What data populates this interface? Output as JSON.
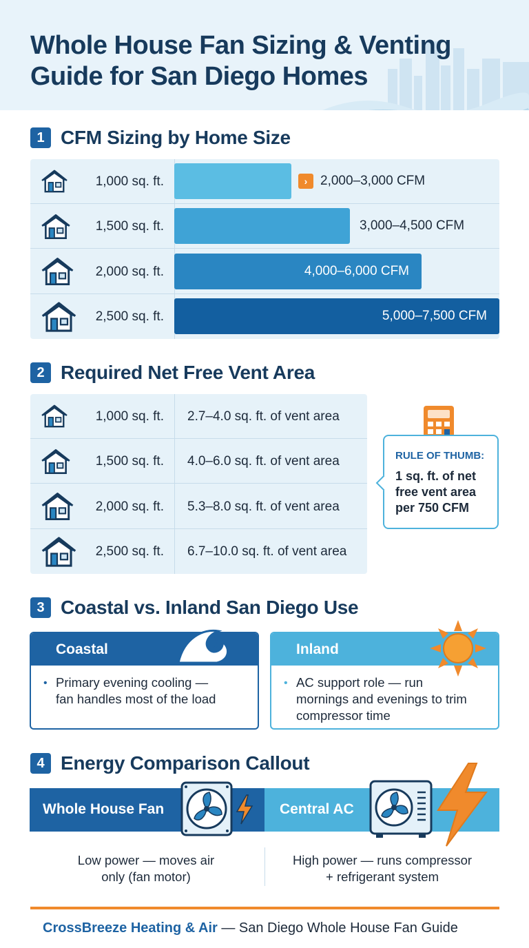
{
  "title": "Whole House Fan Sizing & Venting Guide for San Diego Homes",
  "section1": {
    "num": "1",
    "title": "CFM Sizing by Home Size"
  },
  "cfm_rows": [
    {
      "size": "1,000 sq. ft.",
      "cfm": "2,000–3,000 CFM",
      "level": 0.36,
      "color": "#5bbde3"
    },
    {
      "size": "1,500 sq. ft.",
      "cfm": "3,000–4,500 CFM",
      "level": 0.54,
      "color": "#3fa3d6"
    },
    {
      "size": "2,000 sq. ft.",
      "cfm": "4,000–6,000 CFM",
      "level": 0.76,
      "color": "#2a86c2"
    },
    {
      "size": "2,500 sq. ft.",
      "cfm": "5,000–7,500 CFM",
      "level": 1.0,
      "color": "#135fa0"
    }
  ],
  "section2": {
    "num": "2",
    "title": "Required Net Free Vent Area"
  },
  "vent_rows": [
    {
      "size": "1,000 sq. ft.",
      "area": "2.7–4.0 sq. ft. of vent area"
    },
    {
      "size": "1,500 sq. ft.",
      "area": "4.0–6.0 sq. ft. of vent area"
    },
    {
      "size": "2,000 sq. ft.",
      "area": "5.3–8.0 sq. ft. of vent area"
    },
    {
      "size": "2,500 sq. ft.",
      "area": "6.7–10.0 sq. ft. of vent area"
    }
  ],
  "rule": {
    "title": "RULE OF THUMB:",
    "line1": "1 sq. ft. of net",
    "line2": "free vent area",
    "line3": "per 750 CFM"
  },
  "section3": {
    "num": "3",
    "title": "Coastal vs. Inland San Diego Use"
  },
  "coastal": {
    "title": "Coastal",
    "line1": "Primary evening cooling —",
    "line2": "fan handles most of the load"
  },
  "inland": {
    "title": "Inland",
    "line1": "AC support role — run",
    "line2": "mornings and evenings to trim",
    "line3": "compressor time"
  },
  "section4": {
    "num": "4",
    "title": "Energy Comparison Callout"
  },
  "fan": {
    "label": "Whole House Fan",
    "line1": "Low power — moves air",
    "line2": "only (fan motor)"
  },
  "ac": {
    "label": "Central AC",
    "line1": "High power — runs compressor",
    "line2": "+ refrigerant system"
  },
  "footer": {
    "brand": "CrossBreeze Heating & Air",
    "rest": " — San Diego Whole House Fan Guide"
  },
  "colors": {
    "navy": "#173a5c",
    "blue": "#1e63a3",
    "sky": "#4db2dc",
    "orange": "#f08a2c"
  },
  "icons": {
    "house": "house-icon",
    "calculator": "calculator-icon",
    "wave": "wave-icon",
    "sun": "sun-icon",
    "fan": "fan-icon",
    "ac": "ac-unit-icon",
    "bolt": "lightning-icon"
  }
}
